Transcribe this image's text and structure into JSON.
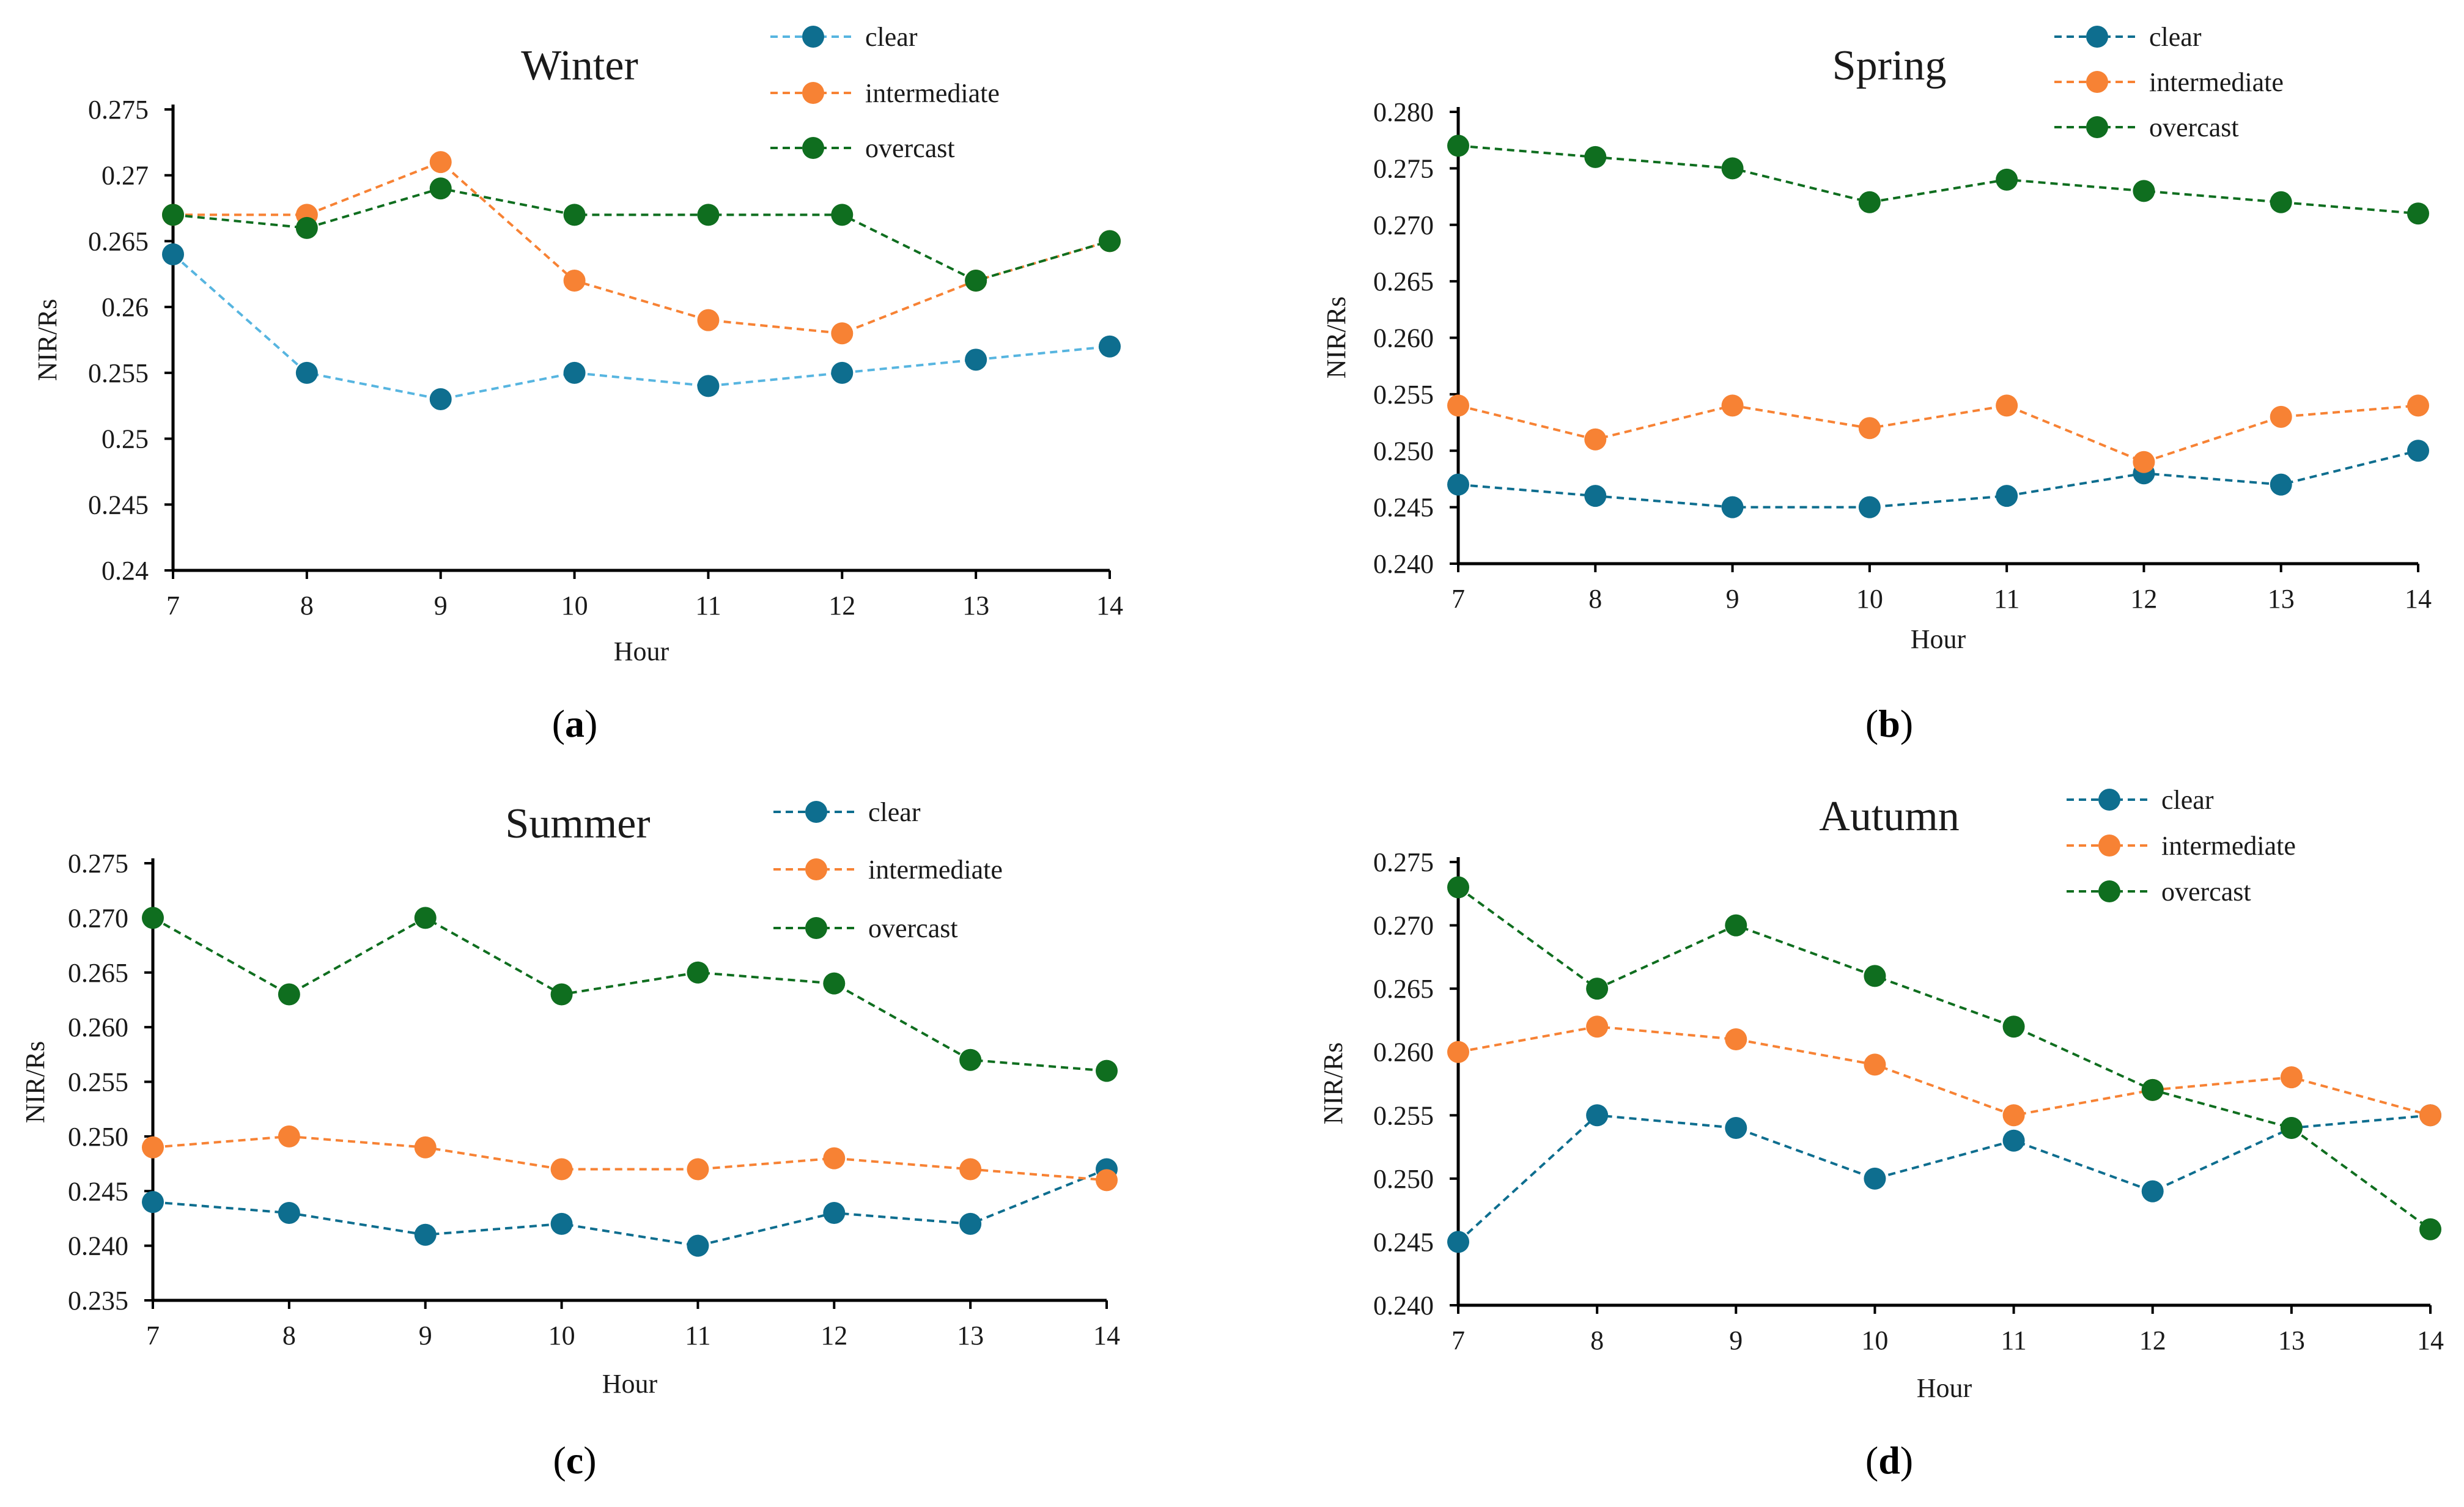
{
  "colors": {
    "clear": "#0e6e8f",
    "intermediate": "#f78234",
    "overcast": "#0f6e1f",
    "axis": "#000000",
    "clear_line_winter": "#57b5e0"
  },
  "chart_data": [
    {
      "type": "line",
      "title": "Winter",
      "caption": {
        "open": "(",
        "letter": "a",
        "close": ")"
      },
      "xlabel": "Hour",
      "ylabel": "NIR/Rs",
      "categories": [
        "7",
        "8",
        "9",
        "10",
        "11",
        "12",
        "13",
        "14"
      ],
      "x": [
        7,
        8,
        9,
        10,
        11,
        12,
        13,
        14
      ],
      "ylim": [
        0.24,
        0.275
      ],
      "yticks": [
        "0.24",
        "0.245",
        "0.25",
        "0.255",
        "0.26",
        "0.265",
        "0.27",
        "0.275"
      ],
      "legend_position": "top-right",
      "series": [
        {
          "name": "clear",
          "values": [
            0.264,
            0.255,
            0.253,
            0.255,
            0.254,
            0.255,
            0.256,
            0.257
          ]
        },
        {
          "name": "intermediate",
          "values": [
            0.267,
            0.267,
            0.271,
            0.262,
            0.259,
            0.258,
            0.262,
            0.265
          ]
        },
        {
          "name": "overcast",
          "values": [
            0.267,
            0.266,
            0.269,
            0.267,
            0.267,
            0.267,
            0.262,
            0.265
          ]
        }
      ]
    },
    {
      "type": "line",
      "title": "Spring",
      "caption": {
        "open": "(",
        "letter": "b",
        "close": ")"
      },
      "xlabel": "Hour",
      "ylabel": "NIR/Rs",
      "categories": [
        "7",
        "8",
        "9",
        "10",
        "11",
        "12",
        "13",
        "14"
      ],
      "x": [
        7,
        8,
        9,
        10,
        11,
        12,
        13,
        14
      ],
      "ylim": [
        0.24,
        0.28
      ],
      "yticks": [
        "0.240",
        "0.245",
        "0.250",
        "0.255",
        "0.260",
        "0.265",
        "0.270",
        "0.275",
        "0.280"
      ],
      "legend_position": "top-right",
      "series": [
        {
          "name": "clear",
          "values": [
            0.247,
            0.246,
            0.245,
            0.245,
            0.246,
            0.248,
            0.247,
            0.25
          ]
        },
        {
          "name": "intermediate",
          "values": [
            0.254,
            0.251,
            0.254,
            0.252,
            0.254,
            0.249,
            0.253,
            0.254
          ]
        },
        {
          "name": "overcast",
          "values": [
            0.277,
            0.276,
            0.275,
            0.272,
            0.274,
            0.273,
            0.272,
            0.271
          ]
        }
      ]
    },
    {
      "type": "line",
      "title": "Summer",
      "caption": {
        "open": "(",
        "letter": "c",
        "close": ")"
      },
      "xlabel": "Hour",
      "ylabel": "NIR/Rs",
      "categories": [
        "7",
        "8",
        "9",
        "10",
        "11",
        "12",
        "13",
        "14"
      ],
      "x": [
        7,
        8,
        9,
        10,
        11,
        12,
        13,
        14
      ],
      "ylim": [
        0.235,
        0.275
      ],
      "yticks": [
        "0.235",
        "0.240",
        "0.245",
        "0.250",
        "0.255",
        "0.260",
        "0.265",
        "0.270",
        "0.275"
      ],
      "legend_position": "top-right",
      "series": [
        {
          "name": "clear",
          "values": [
            0.244,
            0.243,
            0.241,
            0.242,
            0.24,
            0.243,
            0.242,
            0.247
          ]
        },
        {
          "name": "intermediate",
          "values": [
            0.249,
            0.25,
            0.249,
            0.247,
            0.247,
            0.248,
            0.247,
            0.246
          ]
        },
        {
          "name": "overcast",
          "values": [
            0.27,
            0.263,
            0.27,
            0.263,
            0.265,
            0.264,
            0.257,
            0.256
          ]
        }
      ]
    },
    {
      "type": "line",
      "title": "Autumn",
      "caption": {
        "open": "(",
        "letter": "d",
        "close": ")"
      },
      "xlabel": "Hour",
      "ylabel": "NIR/Rs",
      "categories": [
        "7",
        "8",
        "9",
        "10",
        "11",
        "12",
        "13",
        "14"
      ],
      "x": [
        7,
        8,
        9,
        10,
        11,
        12,
        13,
        14
      ],
      "ylim": [
        0.24,
        0.275
      ],
      "yticks": [
        "0.240",
        "0.245",
        "0.250",
        "0.255",
        "0.260",
        "0.265",
        "0.270",
        "0.275"
      ],
      "legend_position": "top-right",
      "series": [
        {
          "name": "clear",
          "values": [
            0.245,
            0.255,
            0.254,
            0.25,
            0.253,
            0.249,
            0.254,
            0.255
          ]
        },
        {
          "name": "intermediate",
          "values": [
            0.26,
            0.262,
            0.261,
            0.259,
            0.255,
            0.257,
            0.258,
            0.255
          ]
        },
        {
          "name": "overcast",
          "values": [
            0.273,
            0.265,
            0.27,
            0.266,
            0.262,
            0.257,
            0.254,
            0.246
          ]
        }
      ]
    }
  ]
}
